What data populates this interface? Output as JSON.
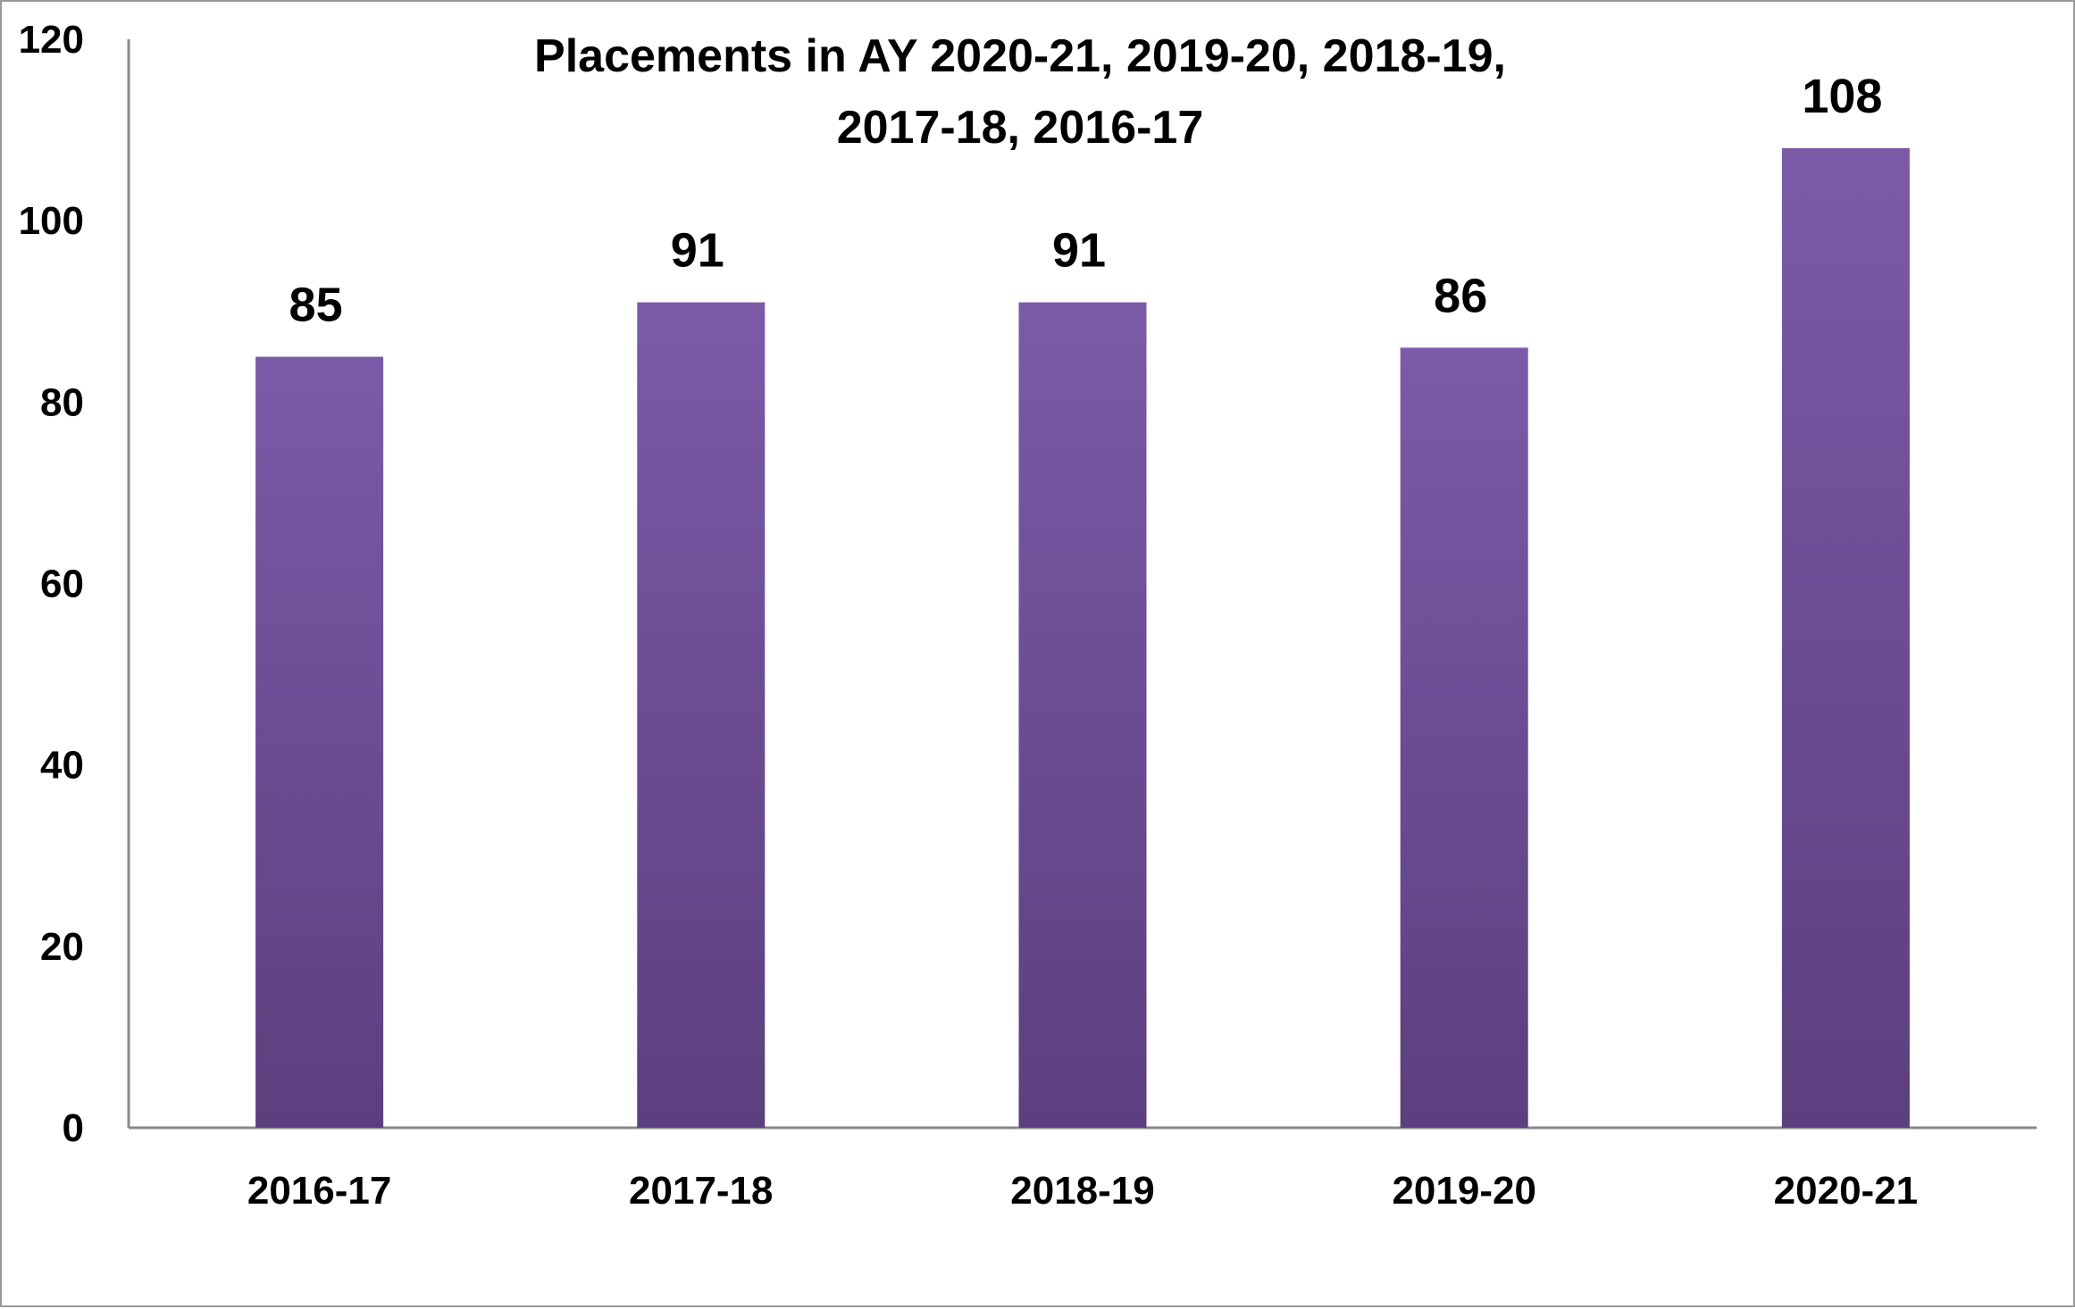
{
  "chart_data": {
    "type": "bar",
    "title_lines": [
      "Placements in AY 2020-21, 2019-20, 2018-19,",
      "2017-18, 2016-17"
    ],
    "categories": [
      "2016-17",
      "2017-18",
      "2018-19",
      "2019-20",
      "2020-21"
    ],
    "values": [
      85,
      91,
      91,
      86,
      108
    ],
    "data_labels": [
      "85",
      "91",
      "91",
      "86",
      "108"
    ],
    "ylim": [
      0,
      120
    ],
    "y_ticks": [
      0,
      20,
      40,
      60,
      80,
      100,
      120
    ],
    "y_tick_labels": [
      "0",
      "20",
      "40",
      "60",
      "80",
      "100",
      "120"
    ],
    "grid": false,
    "legend": "none",
    "colors": {
      "bar_top": "#7b5aa8",
      "bar_bottom": "#5c3f7e",
      "axis": "#888888"
    }
  }
}
